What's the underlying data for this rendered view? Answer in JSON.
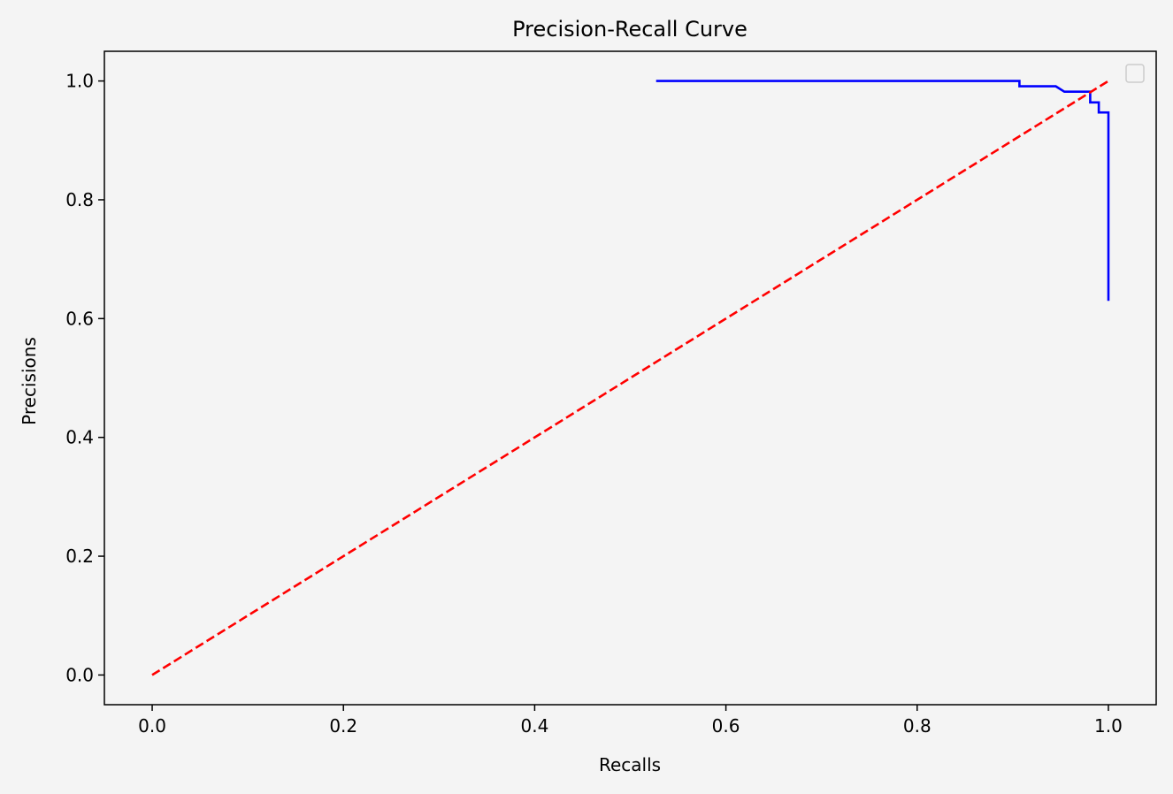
{
  "chart_data": {
    "type": "line",
    "title": "Precision-Recall Curve",
    "xlabel": "Recalls",
    "ylabel": "Precisions",
    "xlim": [
      -0.05,
      1.05
    ],
    "ylim": [
      -0.05,
      1.05
    ],
    "xticks": [
      0.0,
      0.2,
      0.4,
      0.6,
      0.8,
      1.0
    ],
    "xtick_labels": [
      "0.0",
      "0.2",
      "0.4",
      "0.6",
      "0.8",
      "1.0"
    ],
    "yticks": [
      0.0,
      0.2,
      0.4,
      0.6,
      0.8,
      1.0
    ],
    "ytick_labels": [
      "0.0",
      "0.2",
      "0.4",
      "0.6",
      "0.8",
      "1.0"
    ],
    "grid": false,
    "legend": {
      "placement": "top-right",
      "entries": []
    },
    "series": [
      {
        "color": "#0000ff",
        "linestyle": "solid",
        "x": [
          0.527,
          0.907,
          0.907,
          0.945,
          0.954,
          0.981,
          0.981,
          0.99,
          0.99,
          1.0,
          1.0
        ],
        "y": [
          1.0,
          1.0,
          0.991,
          0.991,
          0.982,
          0.982,
          0.964,
          0.964,
          0.947,
          0.947,
          0.63
        ]
      },
      {
        "color": "#ff0000",
        "linestyle": "dashed",
        "x": [
          0.0,
          1.0
        ],
        "y": [
          0.0,
          1.0
        ]
      }
    ]
  }
}
